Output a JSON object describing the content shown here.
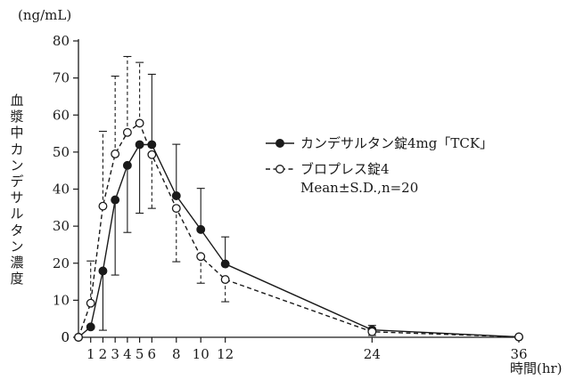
{
  "chart_data": {
    "type": "line",
    "ylabel": "血漿中カンデサルタン濃度",
    "yunit": "(ng/mL)",
    "xunit": "時間(hr)",
    "xlim": [
      0,
      36
    ],
    "ylim": [
      0,
      80
    ],
    "yticks": [
      0,
      10,
      20,
      30,
      40,
      50,
      60,
      70,
      80
    ],
    "xticks": [
      1,
      2,
      3,
      4,
      5,
      6,
      8,
      10,
      12,
      24,
      36
    ],
    "xtick_labels": [
      "1",
      "2",
      "3",
      "4",
      "5",
      "6",
      "8",
      "10",
      "12",
      "24",
      "36"
    ],
    "origin_label": "0",
    "grid": false,
    "legend_position": "right",
    "legend_note": "Mean±S.D.,n=20",
    "series": [
      {
        "name": "カンデサルタン錠4mg「TCK」",
        "line_style": "solid",
        "marker": "filled-circle",
        "x": [
          0,
          1,
          2,
          3,
          4,
          5,
          6,
          8,
          10,
          12,
          24,
          36
        ],
        "y": [
          0,
          2.8,
          17.9,
          37.1,
          46.4,
          52.0,
          52.0,
          38.2,
          29.1,
          19.8,
          2.0,
          0.1
        ],
        "err": [
          0,
          0,
          16.0,
          20.3,
          18.1,
          18.5,
          19.0,
          13.9,
          11.1,
          7.3,
          1.2,
          0
        ],
        "err_side": [
          "none",
          "none",
          "down",
          "down",
          "down",
          "down",
          "up",
          "up",
          "up",
          "up",
          "up",
          "none"
        ]
      },
      {
        "name": "ブロプレス錠4",
        "line_style": "dashed",
        "marker": "open-circle",
        "x": [
          0,
          1,
          2,
          3,
          4,
          5,
          6,
          8,
          10,
          12,
          24,
          36
        ],
        "y": [
          0,
          9.2,
          35.4,
          49.5,
          55.3,
          57.8,
          49.3,
          34.8,
          21.8,
          15.6,
          1.5,
          0.1
        ],
        "err": [
          0,
          11.4,
          20.2,
          21.0,
          20.5,
          16.4,
          14.5,
          14.4,
          7.2,
          6.0,
          1.0,
          0
        ],
        "err_side": [
          "none",
          "up",
          "up",
          "up",
          "up",
          "up",
          "down",
          "down",
          "down",
          "down",
          "down",
          "none"
        ]
      }
    ]
  }
}
